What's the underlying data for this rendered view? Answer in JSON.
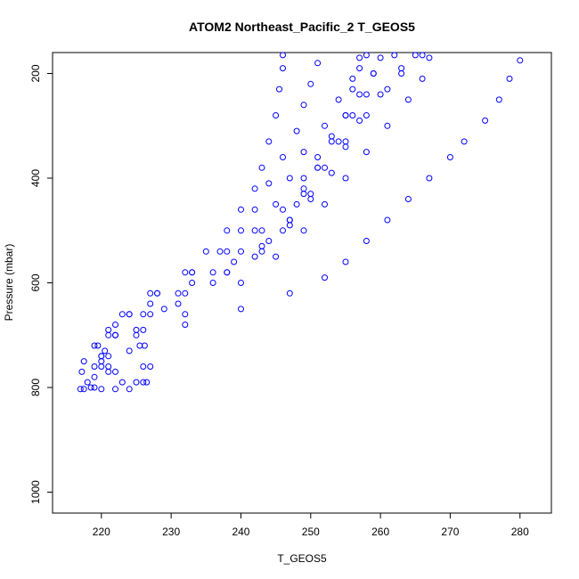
{
  "chart_data": {
    "type": "scatter",
    "title": "ATOM2 Northeast_Pacific_2 T_GEOS5",
    "xlabel": "T_GEOS5",
    "ylabel": "Pressure (mbar)",
    "xlim": [
      213,
      284.5
    ],
    "ylim": [
      1040,
      160
    ],
    "y_reversed": true,
    "xticks": [
      220,
      230,
      240,
      250,
      260,
      270,
      280
    ],
    "yticks": [
      200,
      400,
      600,
      800,
      1000
    ],
    "marker": "open-circle",
    "color": "#0000ff",
    "grid": false,
    "series": [
      {
        "points": [
          [
            226.5,
            790
          ],
          [
            227,
            760
          ],
          [
            226.2,
            720
          ],
          [
            232,
            680
          ],
          [
            240,
            650
          ],
          [
            247,
            620
          ],
          [
            252,
            590
          ],
          [
            255,
            560
          ],
          [
            258,
            520
          ],
          [
            261,
            480
          ],
          [
            264,
            440
          ],
          [
            267,
            400
          ],
          [
            270,
            360
          ],
          [
            272,
            330
          ],
          [
            275,
            290
          ],
          [
            277,
            250
          ],
          [
            278.5,
            210
          ],
          [
            280,
            175
          ]
        ]
      },
      {
        "points": [
          [
            217,
            803
          ],
          [
            218,
            790
          ],
          [
            217.2,
            770
          ],
          [
            217.5,
            750
          ],
          [
            220,
            740
          ],
          [
            225,
            700
          ],
          [
            232,
            660
          ],
          [
            240,
            600
          ],
          [
            245,
            550
          ],
          [
            249,
            500
          ],
          [
            252,
            450
          ],
          [
            255,
            400
          ],
          [
            258,
            350
          ],
          [
            261,
            300
          ],
          [
            264,
            250
          ],
          [
            266,
            210
          ],
          [
            267,
            170
          ]
        ]
      },
      {
        "points": [
          [
            217.5,
            803
          ],
          [
            220,
            803
          ],
          [
            222,
            803
          ],
          [
            224,
            803
          ],
          [
            226,
            790
          ],
          [
            226,
            760
          ],
          [
            224,
            730
          ],
          [
            226,
            690
          ],
          [
            231,
            640
          ],
          [
            238,
            580
          ],
          [
            243,
            530
          ],
          [
            247,
            480
          ],
          [
            250,
            430
          ],
          [
            252,
            380
          ],
          [
            255,
            330
          ],
          [
            258,
            280
          ],
          [
            261,
            230
          ],
          [
            263,
            190
          ],
          [
            265,
            165
          ]
        ]
      },
      {
        "points": [
          [
            220,
            740
          ],
          [
            221,
            700
          ],
          [
            223,
            660
          ],
          [
            227,
            620
          ],
          [
            233,
            580
          ],
          [
            238,
            540
          ],
          [
            242,
            500
          ],
          [
            245,
            450
          ],
          [
            247,
            400
          ],
          [
            249,
            350
          ],
          [
            252,
            300
          ],
          [
            254,
            250
          ],
          [
            256,
            210
          ],
          [
            257,
            170
          ]
        ]
      },
      {
        "points": [
          [
            219,
            800
          ],
          [
            220,
            760
          ],
          [
            219,
            720
          ],
          [
            222,
            680
          ],
          [
            227,
            640
          ],
          [
            233,
            600
          ],
          [
            239,
            560
          ],
          [
            244,
            520
          ],
          [
            247,
            480
          ],
          [
            249,
            430
          ],
          [
            251,
            380
          ],
          [
            253,
            330
          ],
          [
            255,
            280
          ],
          [
            256,
            230
          ],
          [
            257,
            190
          ],
          [
            258,
            165
          ]
        ]
      },
      {
        "points": [
          [
            225,
            790
          ],
          [
            222,
            770
          ],
          [
            220,
            750
          ],
          [
            219.5,
            720
          ],
          [
            221,
            690
          ],
          [
            224,
            660
          ],
          [
            228,
            620
          ],
          [
            232,
            580
          ],
          [
            235,
            540
          ],
          [
            238,
            500
          ],
          [
            240,
            460
          ],
          [
            242,
            420
          ],
          [
            243,
            380
          ],
          [
            244,
            330
          ],
          [
            245,
            280
          ],
          [
            245.5,
            230
          ],
          [
            246,
            190
          ],
          [
            246,
            165
          ]
        ]
      },
      {
        "points": [
          [
            221,
            770
          ],
          [
            221,
            740
          ],
          [
            222,
            700
          ],
          [
            224,
            660
          ],
          [
            228,
            620
          ],
          [
            233,
            580
          ],
          [
            237,
            540
          ],
          [
            240,
            500
          ],
          [
            242,
            460
          ],
          [
            244,
            410
          ],
          [
            246,
            360
          ],
          [
            248,
            310
          ],
          [
            249,
            260
          ],
          [
            250,
            220
          ],
          [
            251,
            180
          ]
        ]
      },
      {
        "points": [
          [
            225.5,
            720
          ],
          [
            225,
            690
          ],
          [
            227,
            660
          ],
          [
            231,
            620
          ],
          [
            236,
            580
          ],
          [
            240,
            540
          ],
          [
            243,
            500
          ],
          [
            246,
            460
          ],
          [
            249,
            420
          ],
          [
            251,
            380
          ],
          [
            254,
            330
          ],
          [
            256,
            280
          ],
          [
            258,
            240
          ],
          [
            259,
            200
          ],
          [
            260,
            170
          ]
        ]
      },
      {
        "points": [
          [
            218.5,
            800
          ],
          [
            219,
            780
          ],
          [
            219,
            760
          ],
          [
            222,
            700
          ],
          [
            229,
            650
          ],
          [
            236,
            600
          ],
          [
            242,
            550
          ],
          [
            246,
            500
          ],
          [
            248,
            450
          ],
          [
            249,
            400
          ],
          [
            251,
            360
          ],
          [
            253,
            320
          ],
          [
            255,
            280
          ],
          [
            257,
            240
          ],
          [
            259,
            200
          ],
          [
            262,
            165
          ]
        ]
      },
      {
        "points": [
          [
            223,
            790
          ],
          [
            221,
            760
          ],
          [
            220.5,
            730
          ],
          [
            222,
            700
          ],
          [
            226,
            660
          ],
          [
            232,
            620
          ],
          [
            238,
            580
          ],
          [
            243,
            540
          ],
          [
            247,
            490
          ],
          [
            250,
            440
          ],
          [
            253,
            390
          ],
          [
            255,
            340
          ],
          [
            257,
            290
          ],
          [
            260,
            240
          ],
          [
            263,
            200
          ],
          [
            266,
            165
          ]
        ]
      }
    ]
  }
}
